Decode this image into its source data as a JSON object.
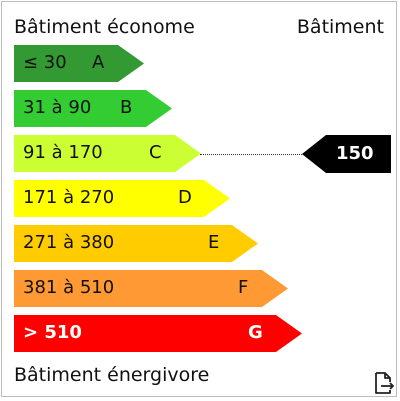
{
  "header": {
    "left": "Bâtiment économe",
    "right": "Bâtiment"
  },
  "footer": {
    "label": "Bâtiment énergivore"
  },
  "classes": [
    {
      "range": "≤ 30",
      "letter": "A",
      "color": "#339933"
    },
    {
      "range": "31 à 90",
      "letter": "B",
      "color": "#33cc33"
    },
    {
      "range": "91 à 170",
      "letter": "C",
      "color": "#ccff33"
    },
    {
      "range": "171 à 270",
      "letter": "D",
      "color": "#ffff00"
    },
    {
      "range": "271 à 380",
      "letter": "E",
      "color": "#ffcc00"
    },
    {
      "range": "381 à 510",
      "letter": "F",
      "color": "#ff9933"
    },
    {
      "range": "> 510",
      "letter": "G",
      "color": "#ff0000"
    }
  ],
  "indicator": {
    "value": "150",
    "class_letter": "C",
    "color": "#000000"
  },
  "icons": {
    "export": "export-file-icon"
  }
}
